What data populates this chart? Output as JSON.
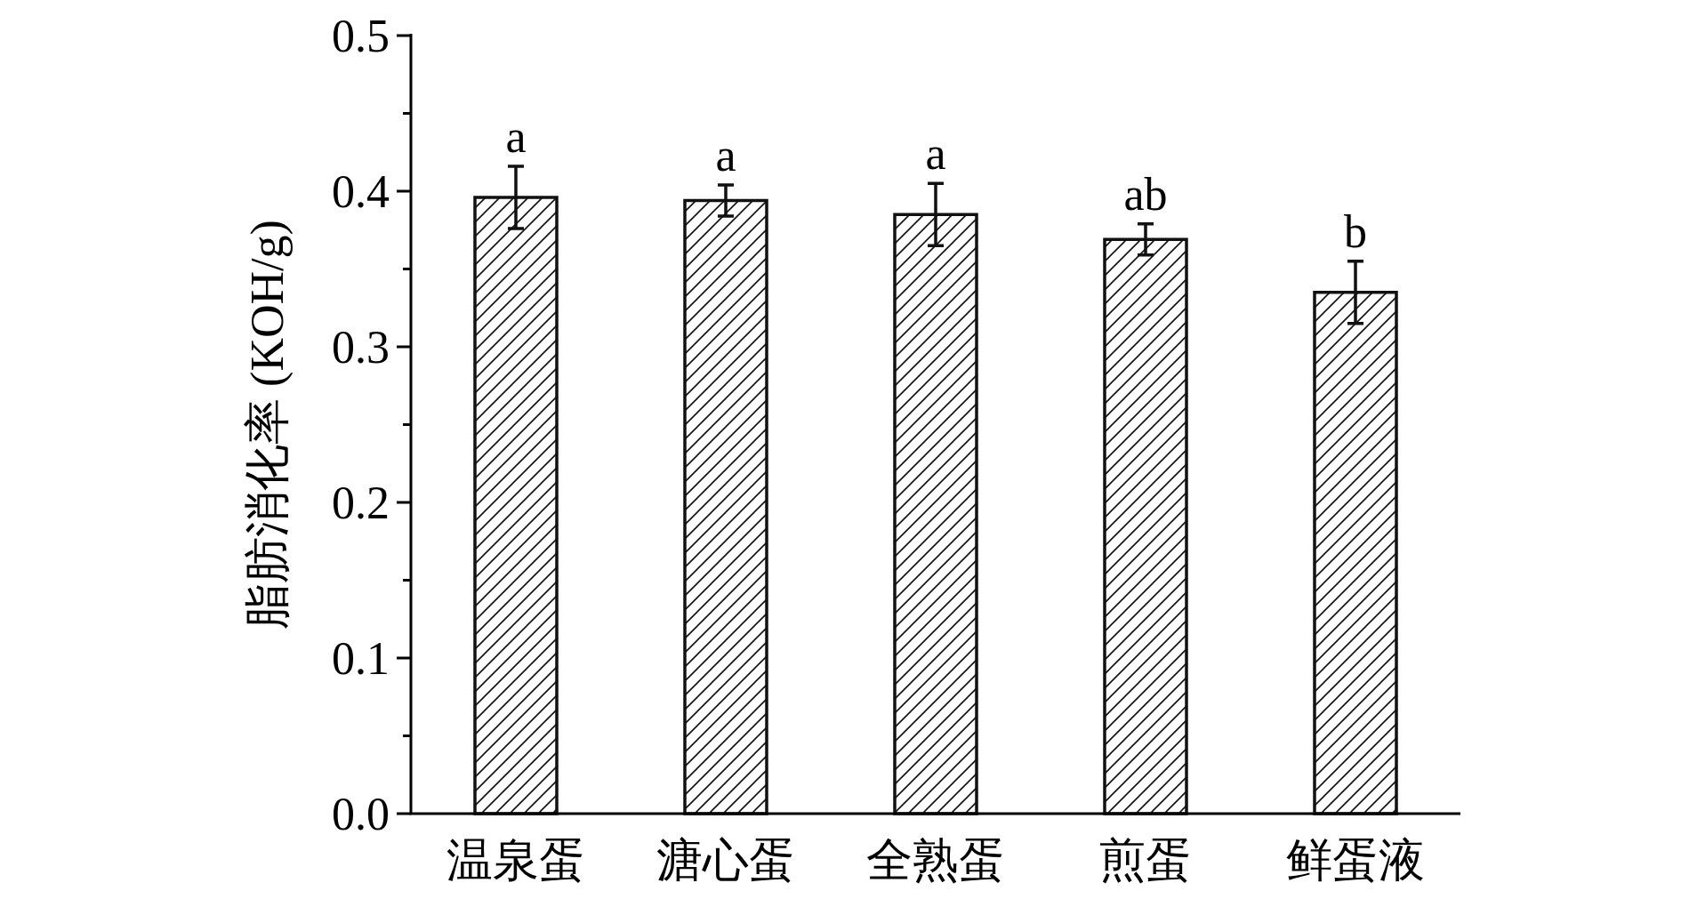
{
  "chart_data": {
    "type": "bar",
    "ylabel": "脂肪消化率 (KOH/g)",
    "categories": [
      "温泉蛋",
      "溏心蛋",
      "全熟蛋",
      "煎蛋",
      "鲜蛋液"
    ],
    "values": [
      0.396,
      0.394,
      0.385,
      0.369,
      0.335
    ],
    "errors": [
      0.02,
      0.01,
      0.02,
      0.01,
      0.02
    ],
    "color": "#111111",
    "ylim": [
      0,
      0.5
    ],
    "yticks": [
      {
        "value": 0,
        "label": "0.0"
      },
      {
        "value": 0.05,
        "label": null
      },
      0.1,
      {
        "value": 0.15,
        "label": null
      },
      0.2,
      {
        "value": 0.25,
        "label": null
      },
      0.3,
      {
        "value": 0.35,
        "label": null
      },
      0.4,
      {
        "value": 0.45,
        "label": null
      },
      0.5
    ],
    "grid": false,
    "annotations": [
      {
        "text": "a",
        "x": "温泉蛋",
        "y": 0.416
      },
      {
        "text": "a",
        "x": "溏心蛋",
        "y": 0.404
      },
      {
        "text": "a",
        "x": "全熟蛋",
        "y": 0.405
      },
      {
        "text": "ab",
        "x": "煎蛋",
        "y": 0.379
      },
      {
        "text": "b",
        "x": "鲜蛋液",
        "y": 0.355
      }
    ]
  }
}
